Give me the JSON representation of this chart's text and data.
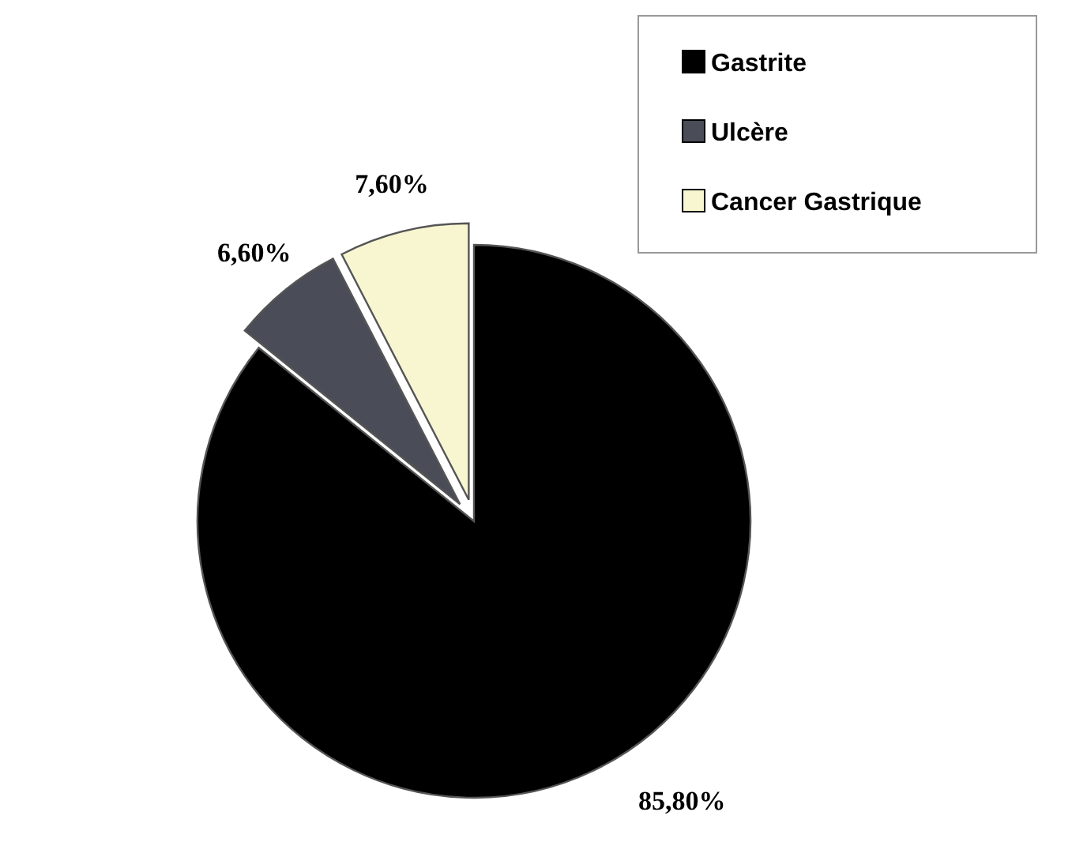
{
  "chart_data": {
    "type": "pie",
    "categories": [
      "Gastrite",
      "Ulcère",
      "Cancer Gastrique"
    ],
    "values": [
      85.8,
      6.6,
      7.6
    ],
    "colors": [
      "#000000",
      "#4a4d57",
      "#f7f6d0"
    ],
    "value_labels": [
      "85,80%",
      "6,60%",
      "7,60%"
    ],
    "legend": "top right"
  }
}
